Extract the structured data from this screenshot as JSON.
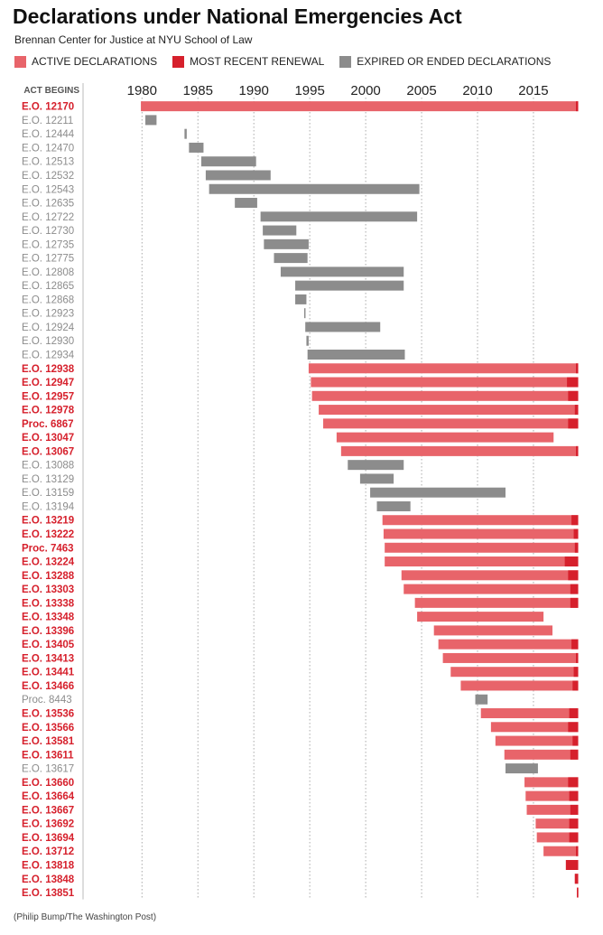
{
  "title": "Declarations under National Emergencies Act",
  "subtitle": "Brennan Center for Justice at NYU School of Law",
  "source": "(Philip Bump/The Washington Post)",
  "legend": [
    {
      "label": "ACTIVE DECLARATIONS",
      "color": "#e8646a"
    },
    {
      "label": "MOST RECENT RENEWAL",
      "color": "#d6202c"
    },
    {
      "label": "EXPIRED OR ENDED DECLARATIONS",
      "color": "#8c8c8c"
    }
  ],
  "chart_data": {
    "type": "bar",
    "orientation": "horizontal",
    "row_header": "ACT BEGINS",
    "x_ticks": [
      1980,
      1985,
      1990,
      1995,
      2000,
      2005,
      2010,
      2015
    ],
    "xlim": [
      1978.2,
      2019.2
    ],
    "grid": "vertical dotted",
    "colors": {
      "active": "#e8646a",
      "renewal": "#d6202c",
      "expired": "#8c8c8c",
      "label_active": "#d6202c",
      "label_expired": "#8c8c8c"
    },
    "rows": [
      {
        "label": "E.O. 12170",
        "status": "active",
        "start": 1979.9,
        "end": 2019.0,
        "renewal": 0.2
      },
      {
        "label": "E.O. 12211",
        "status": "expired",
        "start": 1980.3,
        "end": 1981.3
      },
      {
        "label": "E.O. 12444",
        "status": "expired",
        "start": 1983.8,
        "end": 1984.0
      },
      {
        "label": "E.O. 12470",
        "status": "expired",
        "start": 1984.2,
        "end": 1985.5
      },
      {
        "label": "E.O. 12513",
        "status": "expired",
        "start": 1985.3,
        "end": 1990.2
      },
      {
        "label": "E.O. 12532",
        "status": "expired",
        "start": 1985.7,
        "end": 1991.5
      },
      {
        "label": "E.O. 12543",
        "status": "expired",
        "start": 1986.0,
        "end": 2004.8
      },
      {
        "label": "E.O. 12635",
        "status": "expired",
        "start": 1988.3,
        "end": 1990.3
      },
      {
        "label": "E.O. 12722",
        "status": "expired",
        "start": 1990.6,
        "end": 2004.6
      },
      {
        "label": "E.O. 12730",
        "status": "expired",
        "start": 1990.8,
        "end": 1993.8
      },
      {
        "label": "E.O. 12735",
        "status": "expired",
        "start": 1990.9,
        "end": 1994.9
      },
      {
        "label": "E.O. 12775",
        "status": "expired",
        "start": 1991.8,
        "end": 1994.8
      },
      {
        "label": "E.O. 12808",
        "status": "expired",
        "start": 1992.4,
        "end": 2003.4
      },
      {
        "label": "E.O. 12865",
        "status": "expired",
        "start": 1993.7,
        "end": 2003.4
      },
      {
        "label": "E.O. 12868",
        "status": "expired",
        "start": 1993.7,
        "end": 1994.7
      },
      {
        "label": "E.O. 12923",
        "status": "expired",
        "start": 1994.5,
        "end": 1994.6
      },
      {
        "label": "E.O. 12924",
        "status": "expired",
        "start": 1994.6,
        "end": 2001.3
      },
      {
        "label": "E.O. 12930",
        "status": "expired",
        "start": 1994.7,
        "end": 1994.9
      },
      {
        "label": "E.O. 12934",
        "status": "expired",
        "start": 1994.8,
        "end": 2003.5
      },
      {
        "label": "E.O. 12938",
        "status": "active",
        "start": 1994.9,
        "end": 2019.0,
        "renewal": 0.2
      },
      {
        "label": "E.O. 12947",
        "status": "active",
        "start": 1995.1,
        "end": 2019.0,
        "renewal": 1.0
      },
      {
        "label": "E.O. 12957",
        "status": "active",
        "start": 1995.2,
        "end": 2019.0,
        "renewal": 0.9
      },
      {
        "label": "E.O. 12978",
        "status": "active",
        "start": 1995.8,
        "end": 2019.0,
        "renewal": 0.3
      },
      {
        "label": "Proc. 6867",
        "status": "active",
        "start": 1996.2,
        "end": 2019.0,
        "renewal": 0.9
      },
      {
        "label": "E.O. 13047",
        "status": "active",
        "start": 1997.4,
        "end": 2016.8
      },
      {
        "label": "E.O. 13067",
        "status": "active",
        "start": 1997.8,
        "end": 2019.0,
        "renewal": 0.2
      },
      {
        "label": "E.O. 13088",
        "status": "expired",
        "start": 1998.4,
        "end": 2003.4
      },
      {
        "label": "E.O. 13129",
        "status": "expired",
        "start": 1999.5,
        "end": 2002.5
      },
      {
        "label": "E.O. 13159",
        "status": "expired",
        "start": 2000.4,
        "end": 2012.5
      },
      {
        "label": "E.O. 13194",
        "status": "expired",
        "start": 2001.0,
        "end": 2004.0
      },
      {
        "label": "E.O. 13219",
        "status": "active",
        "start": 2001.5,
        "end": 2019.0,
        "renewal": 0.6
      },
      {
        "label": "E.O. 13222",
        "status": "active",
        "start": 2001.6,
        "end": 2019.0,
        "renewal": 0.4
      },
      {
        "label": "Proc. 7463",
        "status": "active",
        "start": 2001.7,
        "end": 2019.0,
        "renewal": 0.3
      },
      {
        "label": "E.O. 13224",
        "status": "active",
        "start": 2001.7,
        "end": 2019.0,
        "renewal": 1.2
      },
      {
        "label": "E.O. 13288",
        "status": "active",
        "start": 2003.2,
        "end": 2019.0,
        "renewal": 0.9
      },
      {
        "label": "E.O. 13303",
        "status": "active",
        "start": 2003.4,
        "end": 2019.0,
        "renewal": 0.7
      },
      {
        "label": "E.O. 13338",
        "status": "active",
        "start": 2004.4,
        "end": 2019.0,
        "renewal": 0.7
      },
      {
        "label": "E.O. 13348",
        "status": "active",
        "start": 2004.6,
        "end": 2015.9
      },
      {
        "label": "E.O. 13396",
        "status": "active",
        "start": 2006.1,
        "end": 2016.7
      },
      {
        "label": "E.O. 13405",
        "status": "active",
        "start": 2006.5,
        "end": 2019.0,
        "renewal": 0.6
      },
      {
        "label": "E.O. 13413",
        "status": "active",
        "start": 2006.9,
        "end": 2019.0,
        "renewal": 0.2
      },
      {
        "label": "E.O. 13441",
        "status": "active",
        "start": 2007.6,
        "end": 2019.0,
        "renewal": 0.4
      },
      {
        "label": "E.O. 13466",
        "status": "active",
        "start": 2008.5,
        "end": 2019.0,
        "renewal": 0.5
      },
      {
        "label": "Proc. 8443",
        "status": "expired",
        "start": 2009.8,
        "end": 2010.9
      },
      {
        "label": "E.O. 13536",
        "status": "active",
        "start": 2010.3,
        "end": 2019.0,
        "renewal": 0.8
      },
      {
        "label": "E.O. 13566",
        "status": "active",
        "start": 2011.2,
        "end": 2019.0,
        "renewal": 0.9
      },
      {
        "label": "E.O. 13581",
        "status": "active",
        "start": 2011.6,
        "end": 2019.0,
        "renewal": 0.5
      },
      {
        "label": "E.O. 13611",
        "status": "active",
        "start": 2012.4,
        "end": 2019.0,
        "renewal": 0.7
      },
      {
        "label": "E.O. 13617",
        "status": "expired",
        "start": 2012.5,
        "end": 2015.4
      },
      {
        "label": "E.O. 13660",
        "status": "active",
        "start": 2014.2,
        "end": 2019.0,
        "renewal": 0.9
      },
      {
        "label": "E.O. 13664",
        "status": "active",
        "start": 2014.3,
        "end": 2019.0,
        "renewal": 0.8
      },
      {
        "label": "E.O. 13667",
        "status": "active",
        "start": 2014.4,
        "end": 2019.0,
        "renewal": 0.7
      },
      {
        "label": "E.O. 13692",
        "status": "active",
        "start": 2015.2,
        "end": 2019.0,
        "renewal": 0.8
      },
      {
        "label": "E.O. 13694",
        "status": "active",
        "start": 2015.3,
        "end": 2019.0,
        "renewal": 0.8
      },
      {
        "label": "E.O. 13712",
        "status": "active",
        "start": 2015.9,
        "end": 2019.0,
        "renewal": 0.2
      },
      {
        "label": "E.O. 13818",
        "status": "active",
        "start": 2017.9,
        "end": 2019.0,
        "renewal": 1.1
      },
      {
        "label": "E.O. 13848",
        "status": "active",
        "start": 2018.7,
        "end": 2019.0,
        "renewal": 0.3
      },
      {
        "label": "E.O. 13851",
        "status": "active",
        "start": 2018.9,
        "end": 2019.0,
        "renewal": 0.1
      }
    ]
  }
}
